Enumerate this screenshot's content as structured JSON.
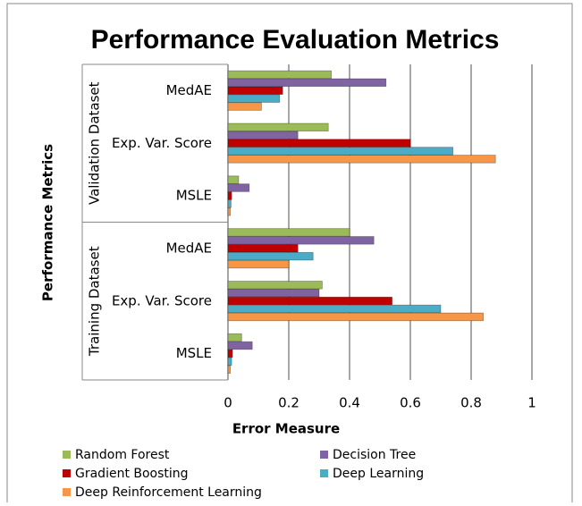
{
  "chart_data": {
    "type": "bar",
    "orientation": "horizontal",
    "title": "Performance Evaluation Metrics",
    "x_label": "Error Measure",
    "y_label": "Performance Metrics",
    "groups": [
      "Validation Dataset",
      "Training Dataset"
    ],
    "categories": [
      "MedAE",
      "Exp. Var. Score",
      "MSLE",
      "MedAE",
      "Exp. Var. Score",
      "MSLE"
    ],
    "series": [
      {
        "name": "Random Forest",
        "color": "#9bbb59",
        "values": [
          0.34,
          0.33,
          0.035,
          0.4,
          0.31,
          0.045
        ]
      },
      {
        "name": "Decision Tree",
        "color": "#8064a2",
        "values": [
          0.52,
          0.23,
          0.07,
          0.48,
          0.3,
          0.08
        ]
      },
      {
        "name": "Gradient Boosting",
        "color": "#c00000",
        "values": [
          0.18,
          0.6,
          0.012,
          0.23,
          0.54,
          0.015
        ]
      },
      {
        "name": "Deep Learning",
        "color": "#4bacc6",
        "values": [
          0.17,
          0.74,
          0.01,
          0.28,
          0.7,
          0.012
        ]
      },
      {
        "name": "Deep Reinforcement Learning",
        "color": "#f79646",
        "values": [
          0.11,
          0.88,
          0.008,
          0.2,
          0.84,
          0.008
        ]
      }
    ],
    "xlim": [
      0,
      1
    ],
    "xticks": [
      0,
      0.2,
      0.4,
      0.6,
      0.8,
      1
    ],
    "grid": true,
    "legend_position": "bottom"
  }
}
